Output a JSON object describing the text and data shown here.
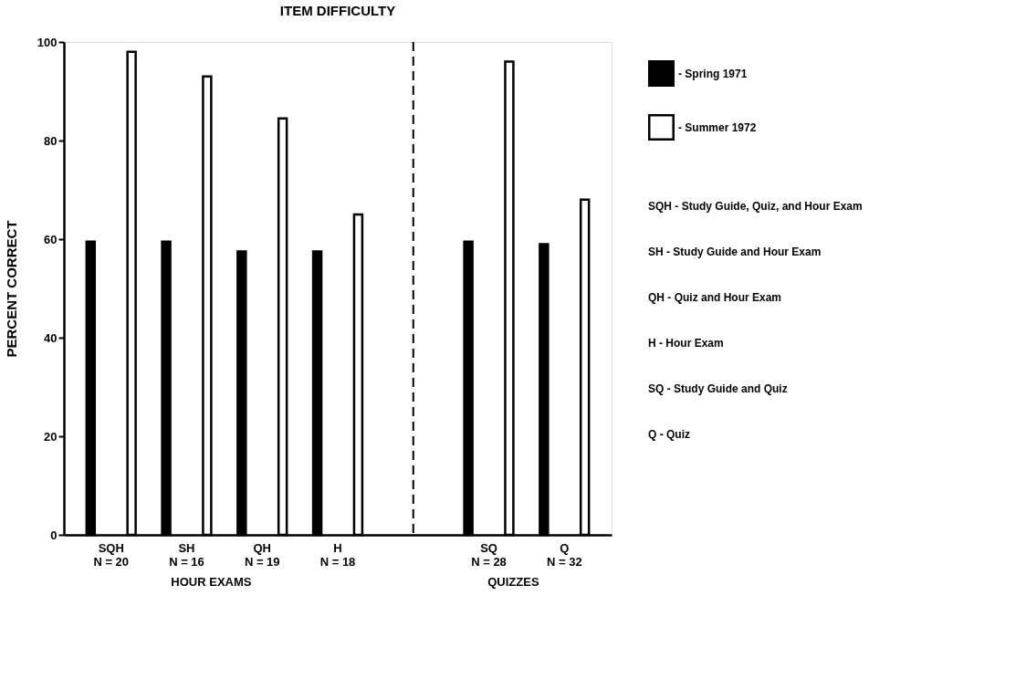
{
  "chart_data": {
    "type": "bar",
    "title": "ITEM DIFFICULTY",
    "ylabel": "PERCENT CORRECT",
    "categories": [
      "SQH\nN = 20",
      "SH\nN = 16",
      "QH\nN = 19",
      "H\nN = 18",
      "SQ\nN = 28",
      "Q\nN = 32"
    ],
    "series": [
      {
        "name": "- Spring 1971",
        "color": "#000000",
        "values": [
          59.5,
          59.5,
          57.5,
          57.5,
          59.5,
          59
        ]
      },
      {
        "name": "- Summer 1972",
        "color": "#ffffff",
        "values": [
          98,
          93,
          84.5,
          65,
          96,
          68
        ]
      }
    ],
    "ylim": [
      0,
      100
    ],
    "yticks": [
      0,
      20,
      40,
      60,
      80,
      100
    ],
    "grid": false,
    "legend": "right",
    "annotations": [
      "HOUR EXAMS",
      "QUIZZES",
      "SQH - Study Guide, Quiz, and Hour Exam",
      "SH - Study Guide and Hour Exam",
      "QH - Quiz and Hour Exam",
      "H - Hour Exam",
      "SQ - Study Guide and Quiz",
      "Q - Quiz"
    ]
  }
}
